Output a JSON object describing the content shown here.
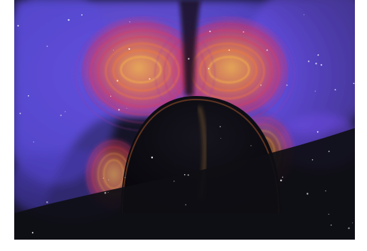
{
  "image": {
    "kind": "space-visualization",
    "subject": "plasma-field-loops-over-dark-sphere",
    "palette": {
      "space": "#151426",
      "plasma_blue": "#5a4ad8",
      "plasma_violet": "#7a3fcf",
      "field_red": "#e0385a",
      "field_orange": "#f07a3a",
      "field_gold": "#f2b04a",
      "sphere_dark": "#07060b",
      "star": "#ffffff"
    },
    "star_count": 60,
    "field_loop_count": 7
  }
}
